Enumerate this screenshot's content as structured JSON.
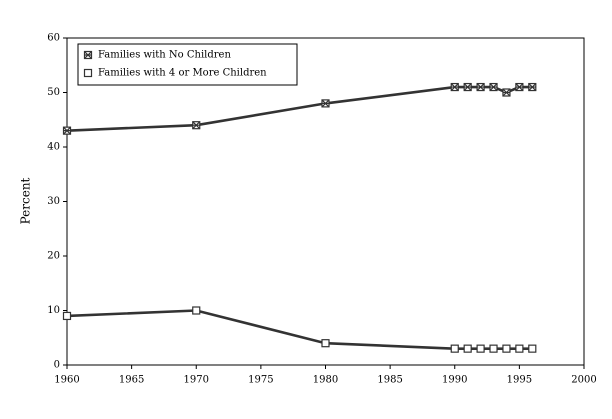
{
  "chart_data": {
    "type": "line",
    "y_label": "Percent",
    "x": [
      1960,
      1970,
      1980,
      1990,
      1991,
      1992,
      1993,
      1994,
      1995,
      1996
    ],
    "series": [
      {
        "name": "Families with No Children",
        "color": "#333333",
        "marker": "crossed-square",
        "values": [
          43,
          44,
          48,
          51,
          51,
          51,
          51,
          50,
          51,
          51
        ]
      },
      {
        "name": "Families with 4 or More Children",
        "color": "#333333",
        "marker": "open-square",
        "values": [
          9,
          10,
          4,
          3,
          3,
          3,
          3,
          3,
          3,
          3
        ]
      }
    ],
    "xlim": [
      1960,
      2000
    ],
    "xticks": [
      1960,
      1965,
      1970,
      1975,
      1980,
      1985,
      1990,
      1995,
      2000
    ],
    "ylim": [
      0,
      60
    ],
    "yticks": [
      0,
      10,
      20,
      30,
      40,
      50,
      60
    ],
    "grid": false,
    "legend": "top-left"
  }
}
